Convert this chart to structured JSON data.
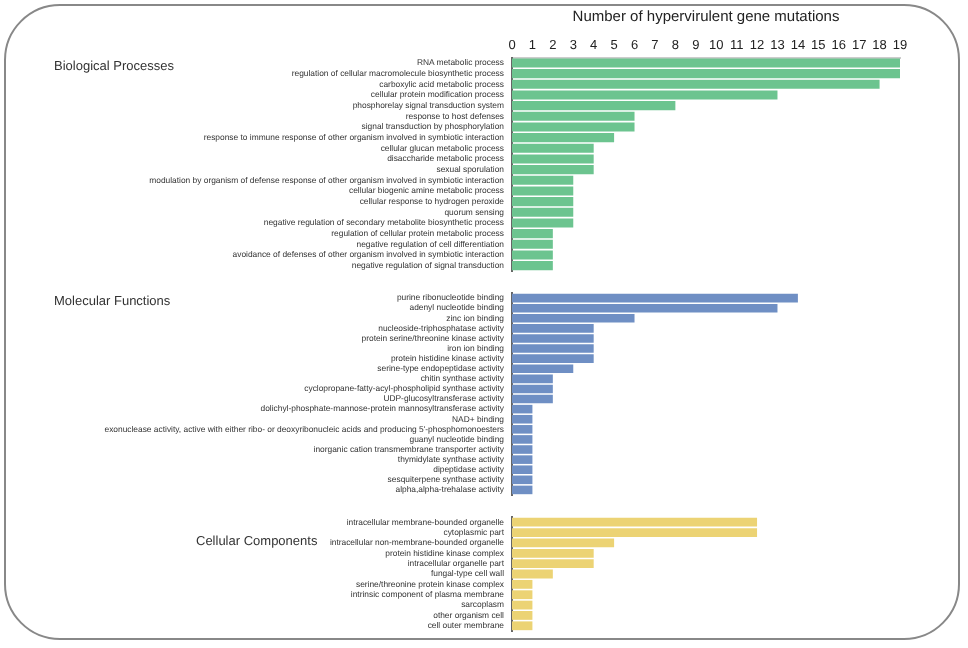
{
  "chart_data": [
    {
      "type": "bar",
      "orientation": "horizontal",
      "title": "Biological Processes",
      "xlabel": "Number of hypervirulent gene mutations",
      "xlim": [
        0,
        19
      ],
      "xticks": [
        0,
        1,
        2,
        3,
        4,
        5,
        6,
        7,
        8,
        9,
        10,
        11,
        12,
        13,
        14,
        15,
        16,
        17,
        18,
        19
      ],
      "grid": false,
      "legend": false,
      "categories": [
        "RNA metabolic process",
        "regulation of cellular macromolecule biosynthetic process",
        "carboxylic acid metabolic process",
        "cellular protein modification process",
        "phosphorelay signal transduction system",
        "response to host defenses",
        "signal transduction by phosphorylation",
        "response to immune response of other organism involved in symbiotic interaction",
        "cellular glucan metabolic process",
        "disaccharide metabolic process",
        "sexual sporulation",
        "modulation by organism of defense response of other organism involved in symbiotic interaction",
        "cellular biogenic amine metabolic process",
        "cellular response to hydrogen peroxide",
        "quorum sensing",
        "negative regulation of secondary metabolite biosynthetic process",
        "regulation of cellular protein metabolic process",
        "negative regulation of cell differentiation",
        "avoidance of defenses of other organism involved in symbiotic interaction",
        "negative regulation of signal transduction"
      ],
      "series": [
        {
          "color": "#6cc48f",
          "values": [
            19,
            19,
            18,
            13,
            8,
            6,
            6,
            5,
            4,
            4,
            4,
            3,
            3,
            3,
            3,
            3,
            2,
            2,
            2,
            2
          ]
        }
      ]
    },
    {
      "type": "bar",
      "orientation": "horizontal",
      "title": "Molecular Functions",
      "xlim": [
        0,
        19
      ],
      "tick_labels": "y",
      "grid": false,
      "legend": false,
      "categories": [
        "purine ribonucleotide binding",
        "adenyl nucleotide binding",
        "zinc ion binding",
        "nucleoside-triphosphatase activity",
        "protein serine/threonine kinase activity",
        "iron ion binding",
        "protein histidine kinase activity",
        "serine-type endopeptidase activity",
        "chitin synthase activity",
        "cyclopropane-fatty-acyl-phospholipid synthase activity",
        "UDP-glucosyltransferase activity",
        "dolichyl-phosphate-mannose-protein mannosyltransferase activity",
        "NAD+ binding",
        "exonuclease activity, active with either ribo- or deoxyribonucleic acids and producing 5'-phosphomonoesters",
        "guanyl nucleotide binding",
        "inorganic cation transmembrane transporter activity",
        "thymidylate synthase activity",
        "dipeptidase activity",
        "sesquiterpene synthase activity",
        "alpha,alpha-trehalase activity"
      ],
      "series": [
        {
          "color": "#6f8fc4",
          "values": [
            14,
            13,
            6,
            4,
            4,
            4,
            4,
            3,
            2,
            2,
            2,
            1,
            1,
            1,
            1,
            1,
            1,
            1,
            1,
            1
          ]
        }
      ]
    },
    {
      "type": "bar",
      "orientation": "horizontal",
      "title": "Cellular Components",
      "xlim": [
        0,
        19
      ],
      "tick_labels": "y",
      "grid": false,
      "legend": false,
      "categories": [
        "intracellular membrane-bounded organelle",
        "cytoplasmic part",
        "intracellular non-membrane-bounded organelle",
        "protein histidine kinase complex",
        "intracellular organelle part",
        "fungal-type cell wall",
        "serine/threonine protein kinase complex",
        "intrinsic component of plasma membrane",
        "sarcoplasm",
        "other organism cell",
        "cell outer membrane"
      ],
      "series": [
        {
          "color": "#ecd374",
          "values": [
            12,
            12,
            5,
            4,
            4,
            2,
            1,
            1,
            1,
            1,
            1
          ]
        }
      ]
    }
  ]
}
